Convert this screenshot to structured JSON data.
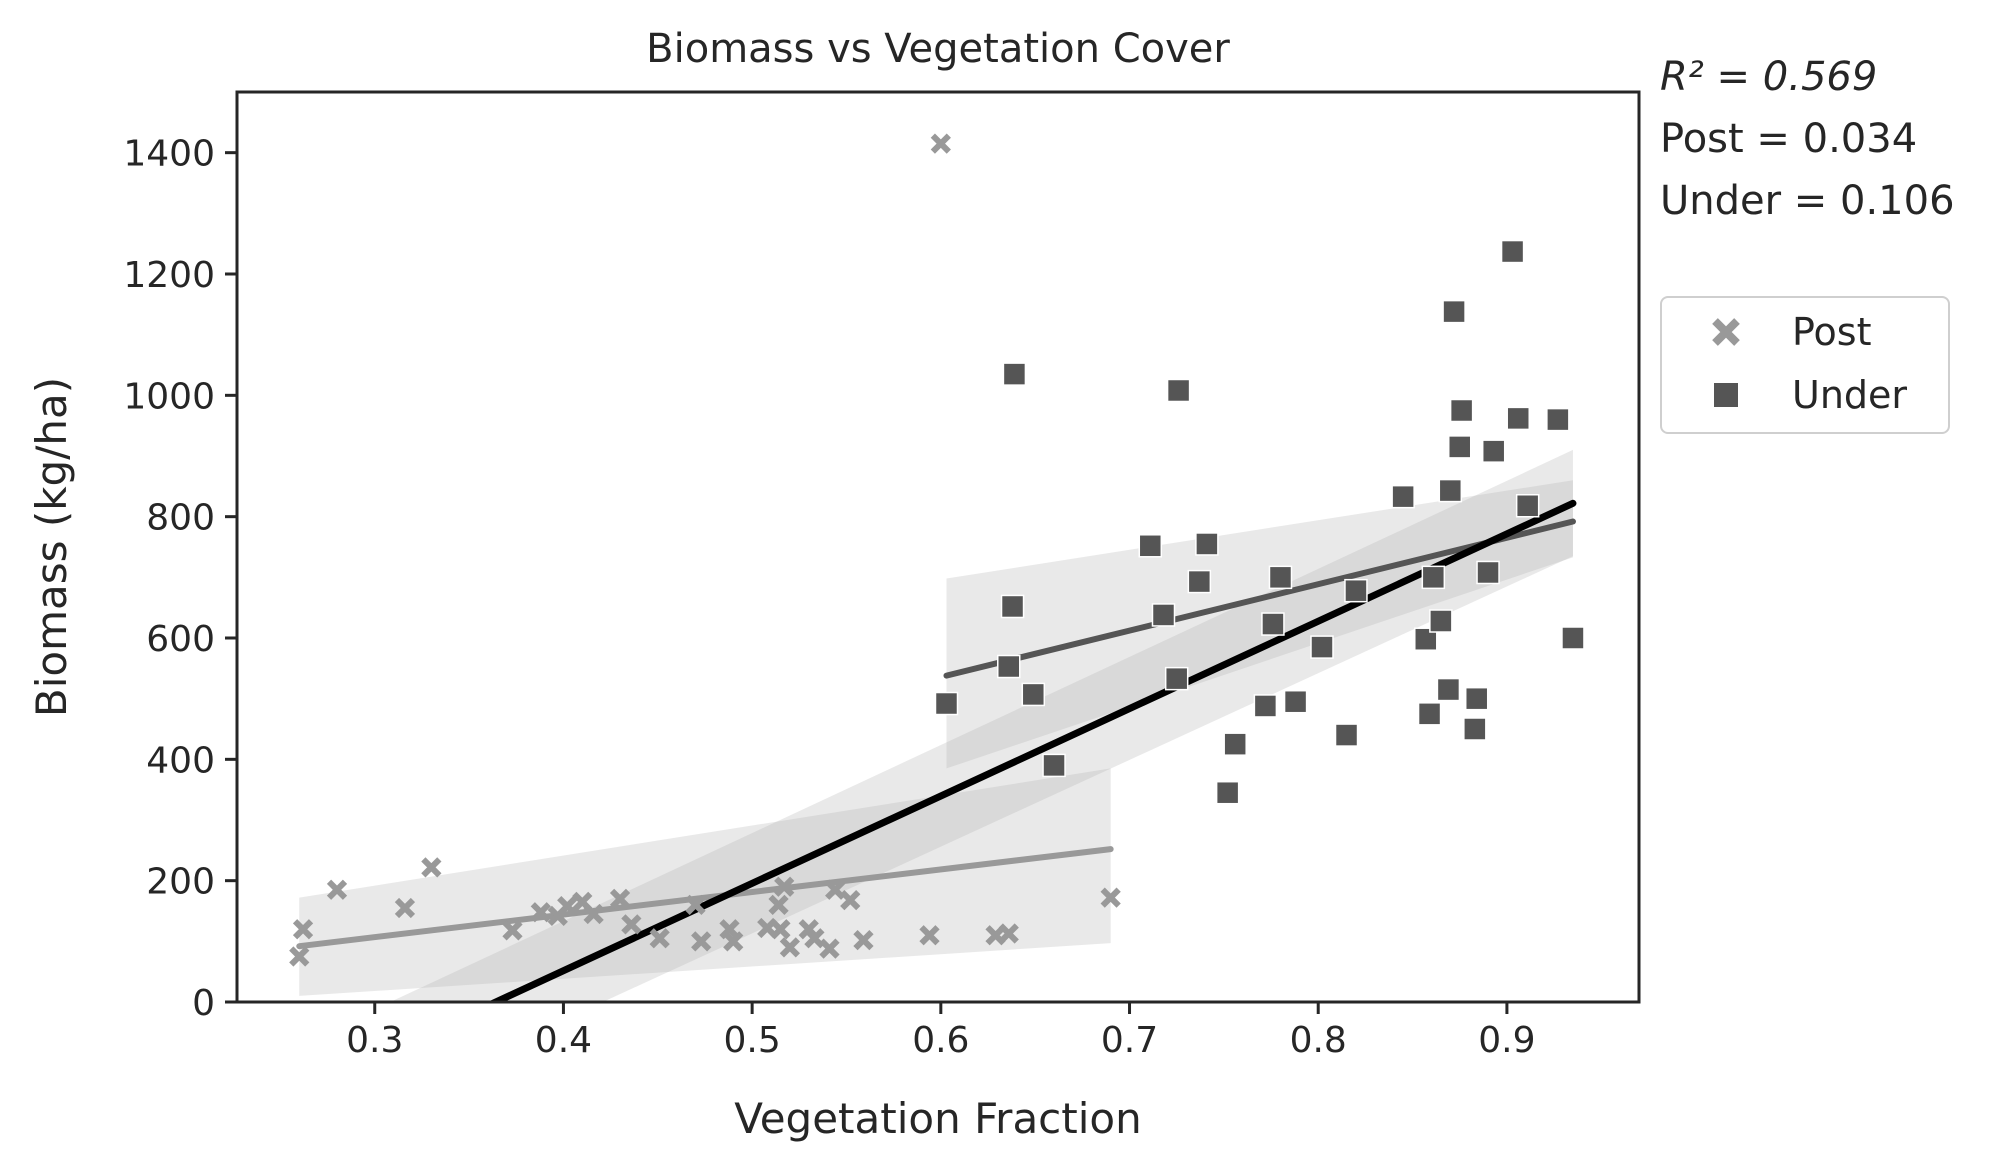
{
  "chart_data": {
    "type": "scatter",
    "title": "Biomass vs Vegetation Cover",
    "xlabel": "Vegetation Fraction",
    "ylabel": "Biomass (kg/ha)",
    "xlim": [
      0.227,
      0.97
    ],
    "ylim": [
      0,
      1500
    ],
    "xticks": [
      0.3,
      0.4,
      0.5,
      0.6,
      0.7,
      0.8,
      0.9
    ],
    "yticks": [
      0,
      200,
      400,
      600,
      800,
      1000,
      1200,
      1400
    ],
    "grid": false,
    "legend_placement": "outside right",
    "stats": {
      "r2_label": "R² = 0.569",
      "post_label": "Post = 0.034",
      "under_label": "Under = 0.106"
    },
    "series": [
      {
        "name": "Post",
        "marker": "x",
        "color": "#999999",
        "points": [
          [
            0.26,
            75
          ],
          [
            0.262,
            120
          ],
          [
            0.28,
            185
          ],
          [
            0.316,
            155
          ],
          [
            0.33,
            222
          ],
          [
            0.373,
            118
          ],
          [
            0.388,
            148
          ],
          [
            0.397,
            142
          ],
          [
            0.402,
            158
          ],
          [
            0.41,
            165
          ],
          [
            0.416,
            145
          ],
          [
            0.43,
            170
          ],
          [
            0.436,
            128
          ],
          [
            0.451,
            105
          ],
          [
            0.47,
            160
          ],
          [
            0.473,
            100
          ],
          [
            0.488,
            120
          ],
          [
            0.49,
            100
          ],
          [
            0.508,
            122
          ],
          [
            0.514,
            160
          ],
          [
            0.515,
            120
          ],
          [
            0.517,
            190
          ],
          [
            0.52,
            90
          ],
          [
            0.53,
            120
          ],
          [
            0.533,
            105
          ],
          [
            0.541,
            88
          ],
          [
            0.544,
            185
          ],
          [
            0.552,
            168
          ],
          [
            0.559,
            102
          ],
          [
            0.594,
            110
          ],
          [
            0.6,
            1415
          ],
          [
            0.629,
            110
          ],
          [
            0.636,
            113
          ],
          [
            0.69,
            172
          ]
        ]
      },
      {
        "name": "Under",
        "marker": "square",
        "color": "#555555",
        "points": [
          [
            0.603,
            492
          ],
          [
            0.636,
            553
          ],
          [
            0.638,
            652
          ],
          [
            0.639,
            1035
          ],
          [
            0.649,
            507
          ],
          [
            0.66,
            390
          ],
          [
            0.711,
            752
          ],
          [
            0.718,
            638
          ],
          [
            0.725,
            533
          ],
          [
            0.726,
            1008
          ],
          [
            0.737,
            693
          ],
          [
            0.741,
            755
          ],
          [
            0.752,
            345
          ],
          [
            0.756,
            425
          ],
          [
            0.772,
            488
          ],
          [
            0.776,
            623
          ],
          [
            0.78,
            700
          ],
          [
            0.788,
            495
          ],
          [
            0.802,
            585
          ],
          [
            0.815,
            440
          ],
          [
            0.82,
            678
          ],
          [
            0.845,
            833
          ],
          [
            0.857,
            598
          ],
          [
            0.859,
            475
          ],
          [
            0.861,
            700
          ],
          [
            0.865,
            628
          ],
          [
            0.869,
            515
          ],
          [
            0.87,
            843
          ],
          [
            0.872,
            1138
          ],
          [
            0.875,
            915
          ],
          [
            0.876,
            975
          ],
          [
            0.883,
            450
          ],
          [
            0.884,
            500
          ],
          [
            0.89,
            708
          ],
          [
            0.893,
            908
          ],
          [
            0.903,
            1237
          ],
          [
            0.906,
            962
          ],
          [
            0.911,
            818
          ],
          [
            0.927,
            960
          ],
          [
            0.935,
            600
          ]
        ]
      }
    ],
    "fits": [
      {
        "series": "Post",
        "color": "#999999",
        "x": [
          0.26,
          0.69
        ],
        "y": [
          92,
          252
        ],
        "ci_low": [
          10,
          97
        ],
        "ci_high": [
          172,
          385
        ]
      },
      {
        "series": "Under",
        "color": "#555555",
        "x": [
          0.603,
          0.935
        ],
        "y": [
          538,
          792
        ],
        "ci_low": [
          385,
          733
        ],
        "ci_high": [
          698,
          860
        ]
      },
      {
        "series": "All",
        "color": "#000000",
        "x": [
          0.26,
          0.935
        ],
        "y": [
          -150,
          822
        ],
        "ci_low": [
          -230,
          735
        ],
        "ci_high": [
          -70,
          910
        ]
      }
    ]
  }
}
